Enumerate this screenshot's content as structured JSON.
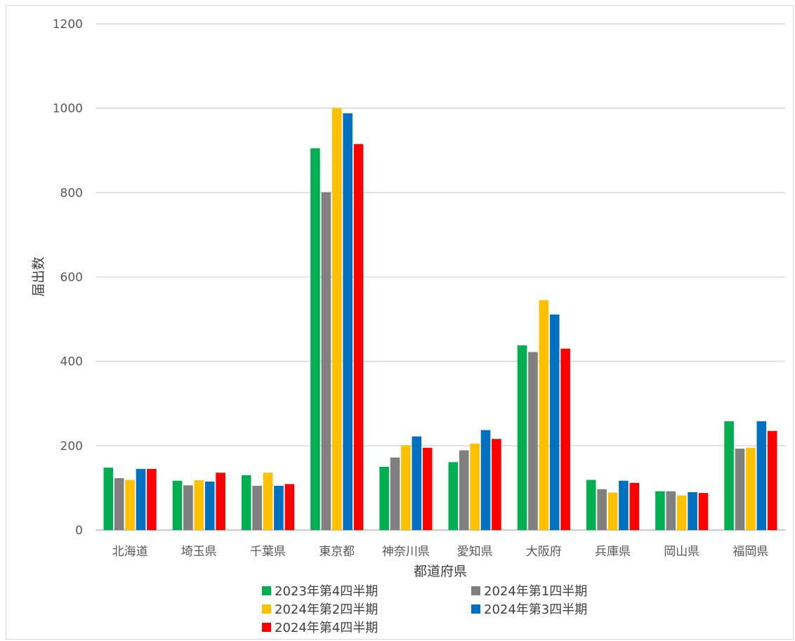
{
  "chart_data": {
    "type": "bar",
    "title": "",
    "xlabel": "都道府県",
    "ylabel": "届出数",
    "ylim": [
      0,
      1200
    ],
    "yticks": [
      0,
      200,
      400,
      600,
      800,
      1000,
      1200
    ],
    "grid": true,
    "legend_position": "bottom",
    "categories": [
      "北海道",
      "埼玉県",
      "千葉県",
      "東京都",
      "神奈川県",
      "愛知県",
      "大阪府",
      "兵庫県",
      "岡山県",
      "福岡県"
    ],
    "series": [
      {
        "name": "2023年第4四半期",
        "color": "#00b050",
        "values": [
          148,
          117,
          130,
          905,
          150,
          161,
          438,
          119,
          92,
          258
        ]
      },
      {
        "name": "2024年第1四半期",
        "color": "#808080",
        "values": [
          123,
          106,
          105,
          801,
          172,
          189,
          422,
          97,
          92,
          193
        ]
      },
      {
        "name": "2024年第2四半期",
        "color": "#ffc000",
        "values": [
          119,
          118,
          136,
          1001,
          201,
          205,
          545,
          89,
          82,
          195
        ]
      },
      {
        "name": "2024年第3四半期",
        "color": "#0070c0",
        "values": [
          145,
          115,
          105,
          988,
          222,
          237,
          511,
          117,
          90,
          258
        ]
      },
      {
        "name": "2024年第4四半期",
        "color": "#ff0000",
        "values": [
          145,
          136,
          109,
          915,
          195,
          216,
          430,
          112,
          88,
          235
        ]
      }
    ]
  }
}
